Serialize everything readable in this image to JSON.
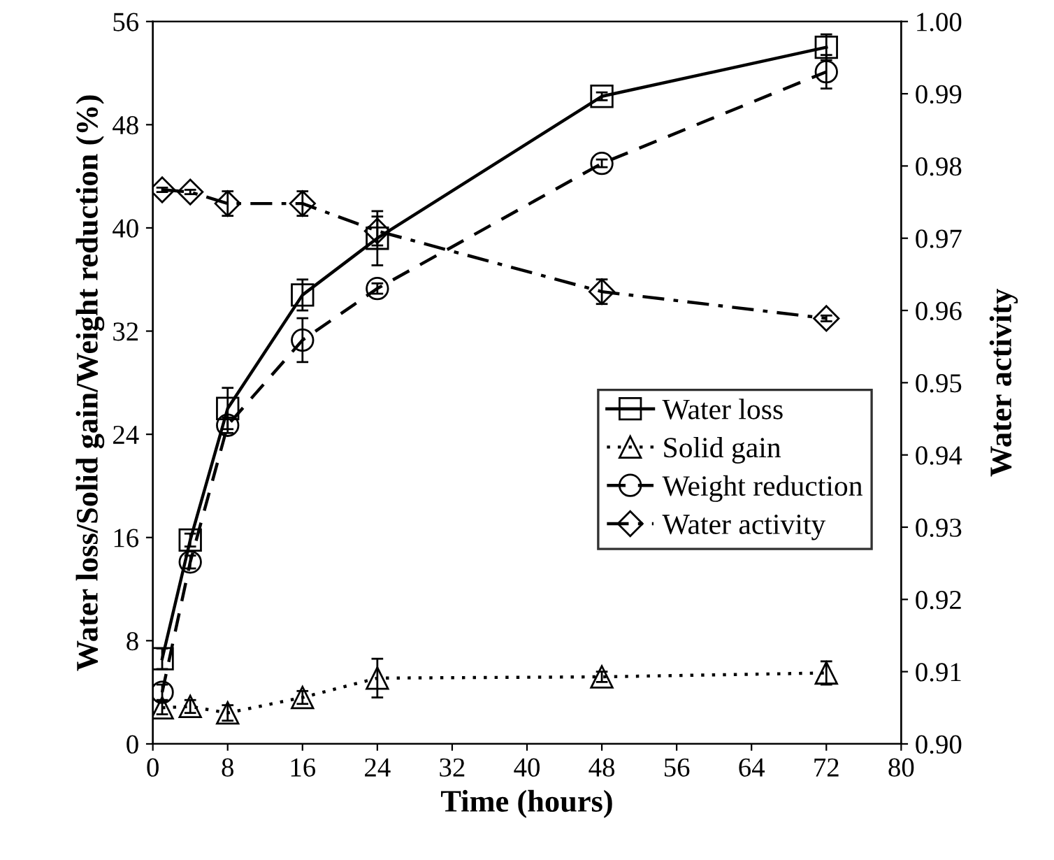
{
  "chart_data": {
    "type": "line",
    "xlabel": "Time (hours)",
    "ylabel": "Water loss/Solid gain/Weight reduction (%)",
    "y2label": "Water activity",
    "x": [
      1,
      4,
      8,
      16,
      24,
      48,
      72
    ],
    "xlim": [
      0,
      80
    ],
    "xticks": [
      0,
      8,
      16,
      24,
      32,
      40,
      48,
      56,
      64,
      72,
      80
    ],
    "ylim": [
      0,
      56
    ],
    "yticks": [
      0,
      8,
      16,
      24,
      32,
      40,
      48,
      56
    ],
    "y2lim": [
      0.9,
      1.0
    ],
    "y2ticks": [
      {
        "value": 0.9,
        "label": "0.90"
      },
      0.91,
      0.92,
      0.93,
      0.94,
      0.95,
      0.96,
      0.97,
      0.98,
      0.99,
      {
        "value": 1.0,
        "label": "1.00"
      }
    ],
    "grid": false,
    "legend": "right",
    "series": [
      {
        "name": "Water loss",
        "color": "#000000",
        "marker": "square",
        "line_style": "solid",
        "values": [
          6.6,
          15.8,
          26.0,
          34.8,
          39.2,
          50.2,
          54.0
        ],
        "errors": [
          0.8,
          0.5,
          1.6,
          1.2,
          2.1,
          0.3,
          1.0
        ]
      },
      {
        "name": "Solid gain",
        "color": "#000000",
        "marker": "triangle",
        "line_style": "dotted",
        "values": [
          2.8,
          2.9,
          2.4,
          3.6,
          5.1,
          5.2,
          5.5
        ],
        "errors": [
          0.5,
          0.5,
          0.6,
          0.5,
          1.5,
          0.4,
          0.9
        ]
      },
      {
        "name": "Weight reduction",
        "color": "#000000",
        "marker": "circle",
        "line_style": "dashed",
        "values": [
          4.0,
          14.1,
          24.7,
          31.3,
          35.3,
          45.0,
          52.1
        ],
        "errors": [
          0.6,
          0.5,
          0.6,
          1.7,
          0.4,
          0.3,
          1.3
        ]
      },
      {
        "name": "Water activity",
        "color": "#000000",
        "marker": "diamond",
        "line_style": "dashdot",
        "axis": "y2",
        "values": [
          0.9767,
          0.9764,
          0.9748,
          0.9748,
          0.971,
          0.9626,
          0.9589
        ],
        "errors": [
          0.0003,
          0.0003,
          0.0017,
          0.0017,
          0.002,
          0.0017,
          0.0004
        ]
      }
    ]
  }
}
